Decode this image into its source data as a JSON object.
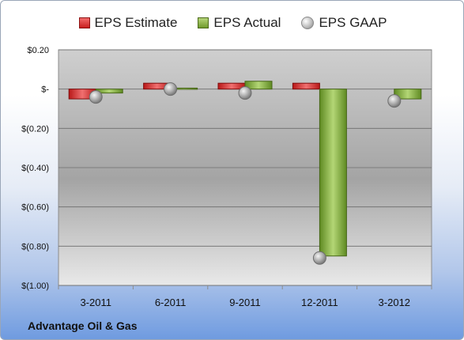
{
  "legend": {
    "estimate": "EPS Estimate",
    "actual": "EPS Actual",
    "gaap": "EPS GAAP"
  },
  "company": "Advantage Oil & Gas",
  "colors": {
    "estimate": "#d42a2a",
    "actual": "#7fa63a",
    "gaap": "#a8a8a8"
  },
  "chart_data": {
    "type": "bar",
    "categories": [
      "3-2011",
      "6-2011",
      "9-2011",
      "12-2011",
      "3-2012"
    ],
    "series": [
      {
        "name": "EPS Estimate",
        "values": [
          -0.05,
          0.03,
          0.03,
          0.03,
          null
        ]
      },
      {
        "name": "EPS Actual",
        "values": [
          -0.02,
          0.005,
          0.04,
          -0.85,
          -0.05
        ]
      },
      {
        "name": "EPS GAAP",
        "values": [
          -0.04,
          0.0,
          -0.02,
          -0.86,
          -0.06
        ]
      }
    ],
    "yticks": [
      0.2,
      0.0,
      -0.2,
      -0.4,
      -0.6,
      -0.8,
      -1.0
    ],
    "ytick_labels": [
      "$0.20",
      "$-",
      "$(0.20)",
      "$(0.40)",
      "$(0.60)",
      "$(0.80)",
      "$(1.00)"
    ],
    "ylim": [
      -1.0,
      0.2
    ],
    "grid": true,
    "legend_position": "top"
  }
}
